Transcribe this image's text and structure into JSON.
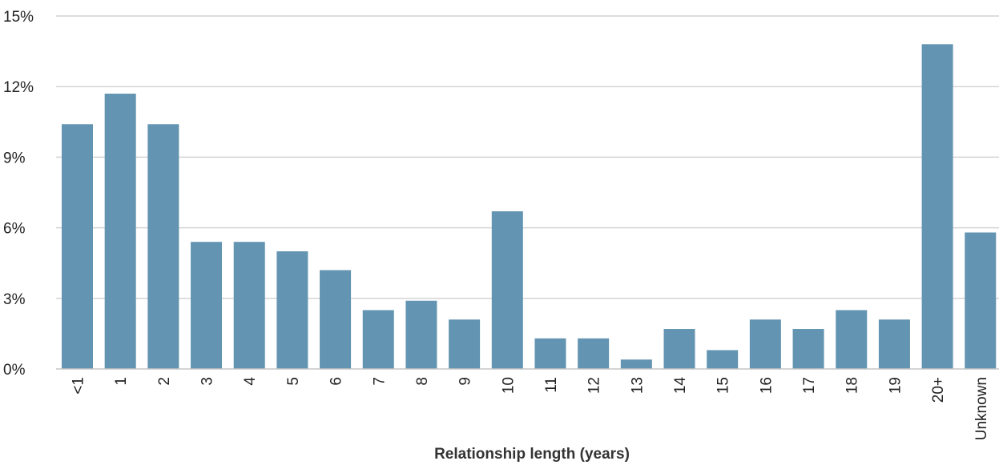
{
  "chart_data": {
    "type": "bar",
    "title": "",
    "xlabel": "Relationship length (years)",
    "ylabel": "",
    "categories": [
      "<1",
      "1",
      "2",
      "3",
      "4",
      "5",
      "6",
      "7",
      "8",
      "9",
      "10",
      "11",
      "12",
      "13",
      "14",
      "15",
      "16",
      "17",
      "18",
      "19",
      "20+",
      "Unknown"
    ],
    "values": [
      10.4,
      11.7,
      10.4,
      5.4,
      5.4,
      5.0,
      4.2,
      2.5,
      2.9,
      2.1,
      6.7,
      1.3,
      1.3,
      0.4,
      1.7,
      0.8,
      2.1,
      1.7,
      2.5,
      2.1,
      13.8,
      5.8
    ],
    "ylim": [
      0,
      15
    ],
    "yticks": [
      0,
      3,
      6,
      9,
      12,
      15
    ],
    "ytick_labels": [
      "0%",
      "3%",
      "6%",
      "9%",
      "12%",
      "15%"
    ],
    "grid": true,
    "legend": "none",
    "bar_color": "#6394b1"
  }
}
